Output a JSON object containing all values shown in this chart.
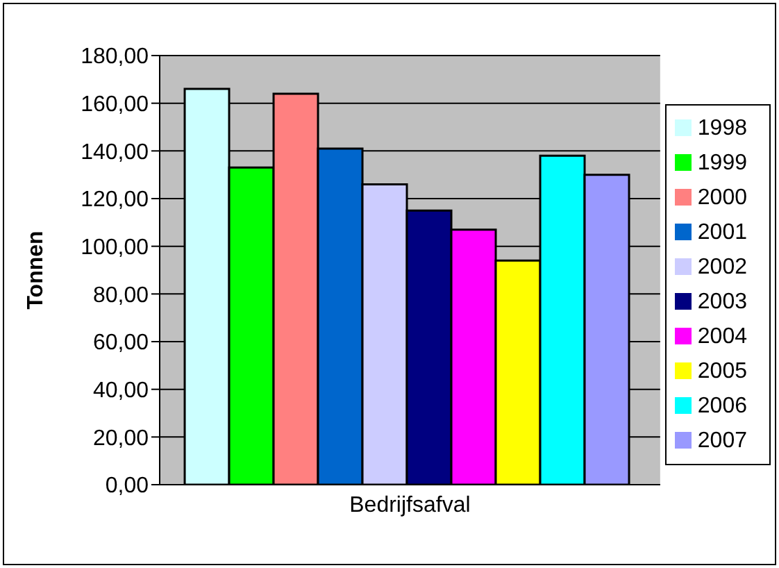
{
  "chart_data": {
    "type": "bar",
    "ylabel": "Tonnen",
    "categories": [
      "Bedrijfsafval"
    ],
    "series": [
      {
        "name": "1998",
        "color": "#ccffff",
        "values": [
          166
        ]
      },
      {
        "name": "1999",
        "color": "#00ff00",
        "values": [
          133
        ]
      },
      {
        "name": "2000",
        "color": "#ff8080",
        "values": [
          164
        ]
      },
      {
        "name": "2001",
        "color": "#0066cc",
        "values": [
          141
        ]
      },
      {
        "name": "2002",
        "color": "#ccccff",
        "values": [
          126
        ]
      },
      {
        "name": "2003",
        "color": "#000080",
        "values": [
          115
        ]
      },
      {
        "name": "2004",
        "color": "#ff00ff",
        "values": [
          107
        ]
      },
      {
        "name": "2005",
        "color": "#ffff00",
        "values": [
          94
        ]
      },
      {
        "name": "2006",
        "color": "#00ffff",
        "values": [
          138
        ]
      },
      {
        "name": "2007",
        "color": "#9999ff",
        "values": [
          130
        ]
      }
    ],
    "ylim": [
      0,
      180
    ],
    "yticks": [
      {
        "value": 0,
        "label": "0,00"
      },
      {
        "value": 20,
        "label": "20,00"
      },
      {
        "value": 40,
        "label": "40,00"
      },
      {
        "value": 60,
        "label": "60,00"
      },
      {
        "value": 80,
        "label": "80,00"
      },
      {
        "value": 100,
        "label": "100,00"
      },
      {
        "value": 120,
        "label": "120,00"
      },
      {
        "value": 140,
        "label": "140,00"
      },
      {
        "value": 160,
        "label": "160,00"
      },
      {
        "value": 180,
        "label": "180,00"
      }
    ],
    "grid": "y",
    "legend": "right"
  }
}
